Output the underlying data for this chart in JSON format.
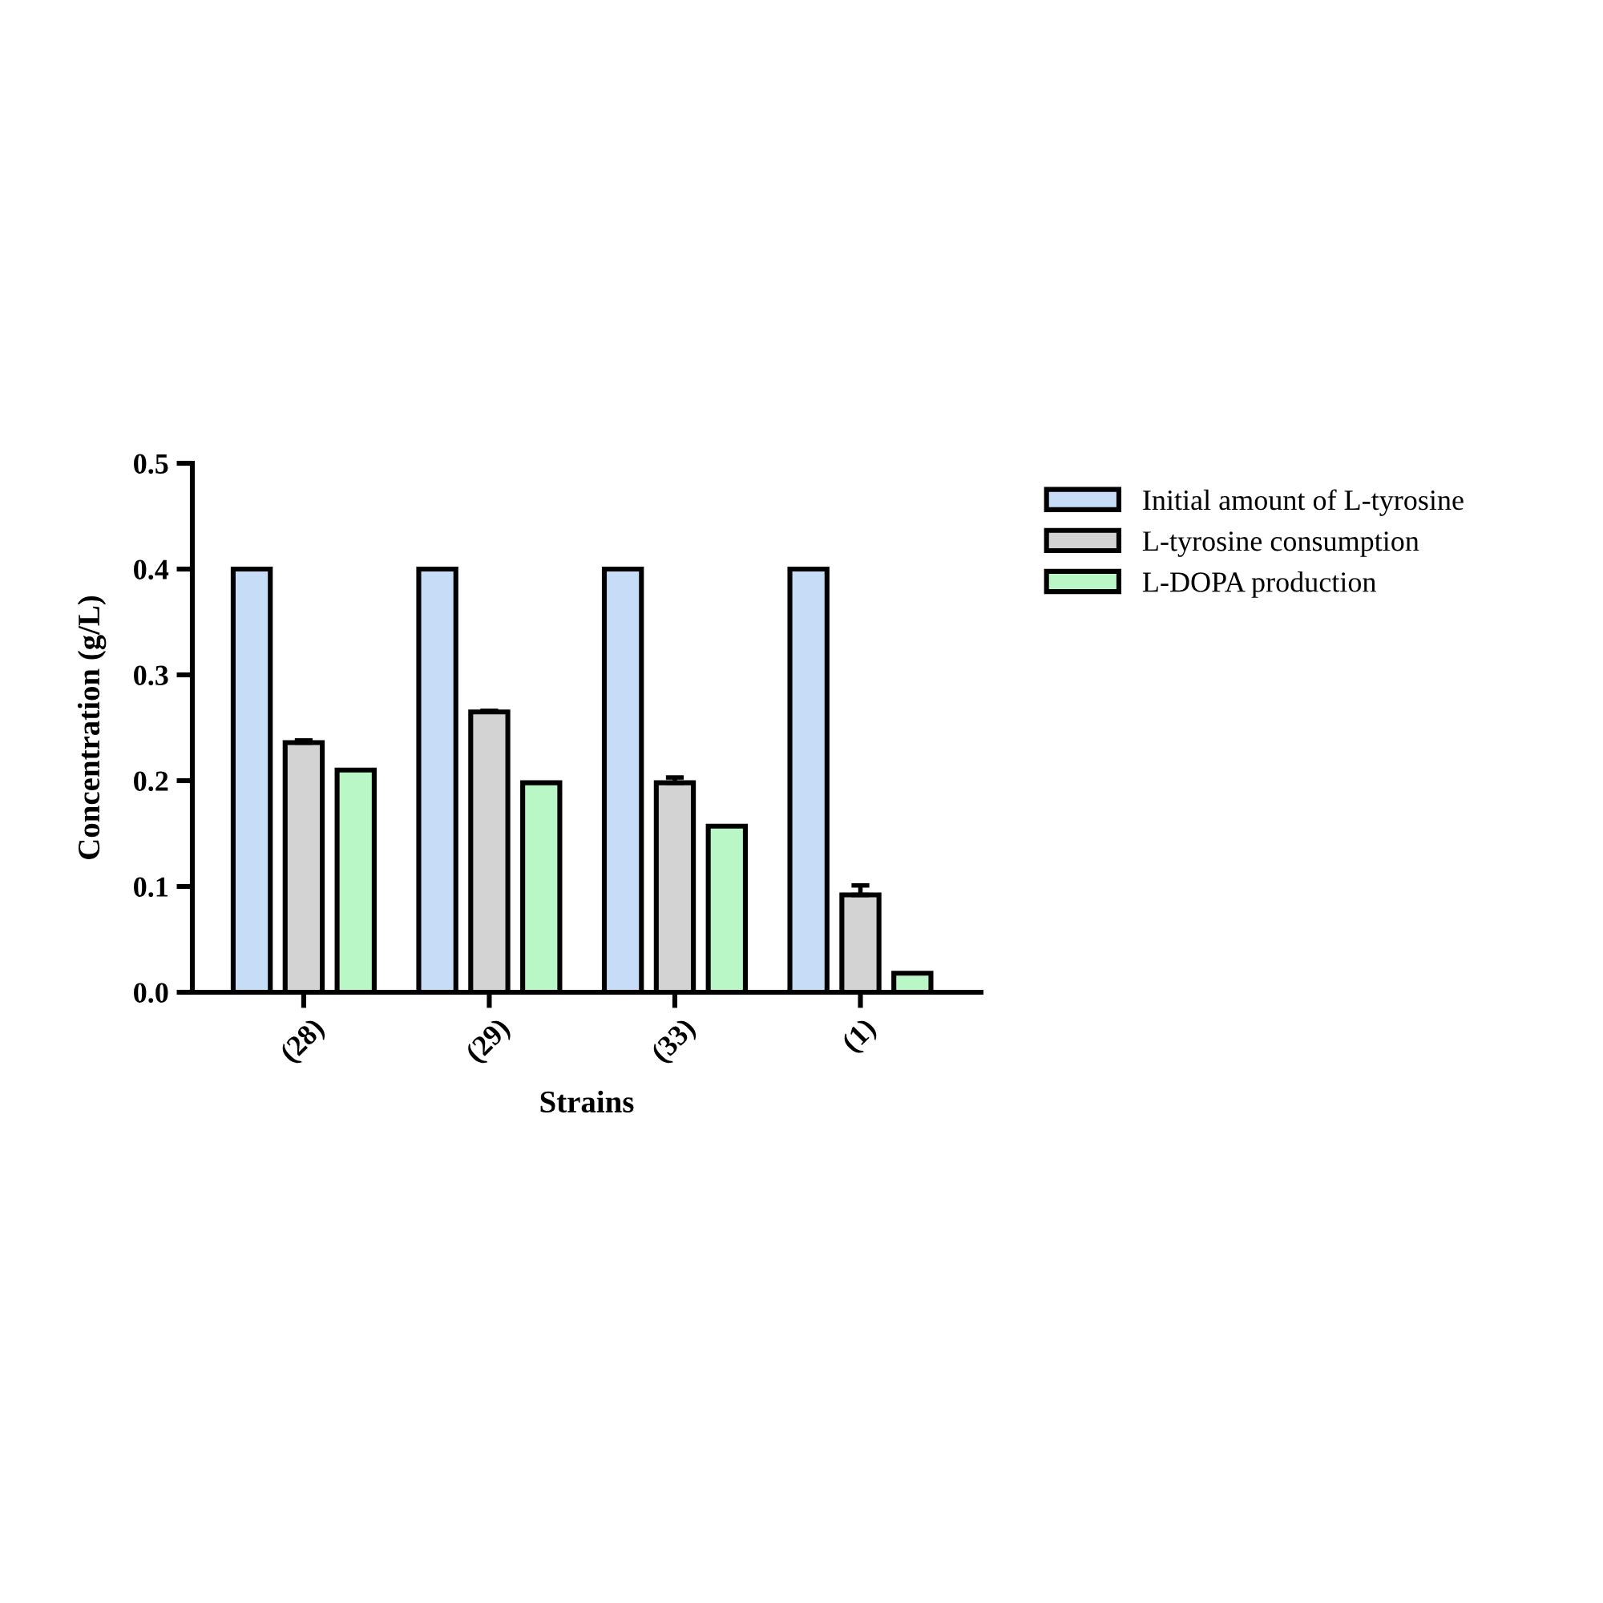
{
  "chart_data": {
    "type": "bar",
    "xlabel": "Strains",
    "ylabel": "Concentration (g/L)",
    "categories": [
      "(28)",
      "(29)",
      "(33)",
      "(1)"
    ],
    "series": [
      {
        "name": "Initial amount of L-tyrosine",
        "color": "#c6dcf7",
        "values": [
          0.4,
          0.4,
          0.4,
          0.4
        ]
      },
      {
        "name": "L-tyrosine consumption",
        "color": "#d3d3d3",
        "values": [
          0.236,
          0.265,
          0.198,
          0.092
        ],
        "errors": [
          0.002,
          0.001,
          0.005,
          0.009
        ]
      },
      {
        "name": "L-DOPA production",
        "color": "#b9f7c6",
        "values": [
          0.21,
          0.198,
          0.157,
          0.018
        ]
      }
    ],
    "ylim": [
      0,
      0.5
    ],
    "yticks": [
      {
        "value": 0,
        "label": "0.0"
      },
      0.1,
      0.2,
      0.3,
      0.4,
      0.5
    ],
    "grid": false,
    "legend": "right"
  }
}
